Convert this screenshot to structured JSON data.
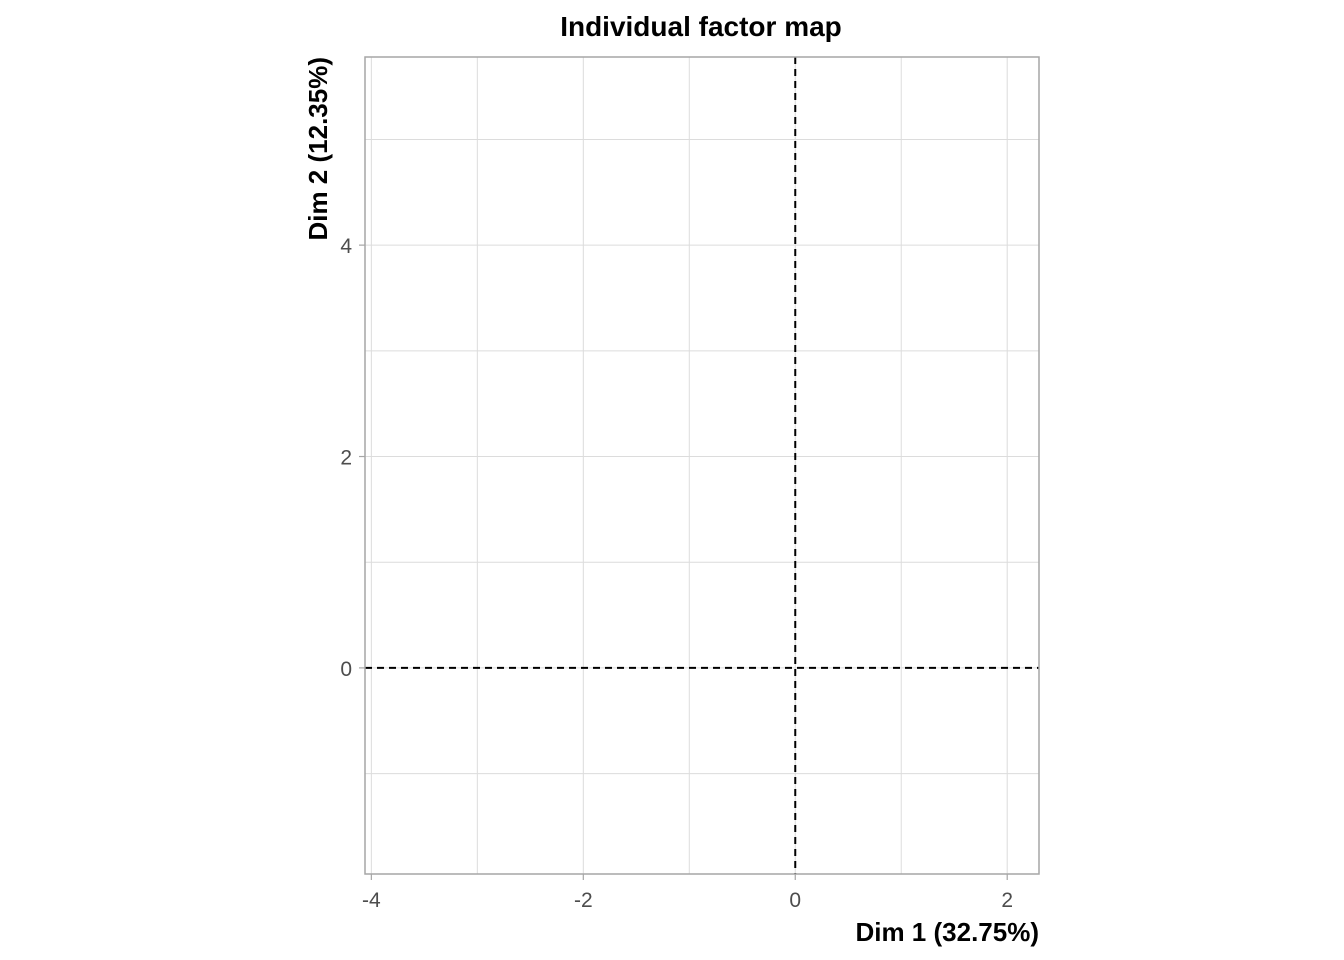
{
  "chart_data": {
    "type": "scatter",
    "title": "Individual factor map",
    "xlabel": "Dim 1 (32.75%)",
    "ylabel": "Dim 2 (12.35%)",
    "xlim": [
      -4.06,
      2.3
    ],
    "ylim": [
      -1.95,
      5.78
    ],
    "x_ticks": [
      -4,
      -2,
      0,
      2
    ],
    "y_ticks": [
      0,
      2,
      4
    ],
    "x_minor_gridlines": [
      -3,
      -1,
      1
    ],
    "y_minor_gridlines": [
      -1,
      1,
      3,
      5
    ],
    "grid": true,
    "reference_lines": [
      {
        "axis": "x",
        "value": 0,
        "style": "dashed"
      },
      {
        "axis": "y",
        "value": 0,
        "style": "dashed"
      }
    ],
    "series": [],
    "colors": {
      "grid": "#dcdcdc",
      "border": "#a6a6a6",
      "reference": "#000000",
      "tick_text": "#4d4d4d"
    }
  }
}
